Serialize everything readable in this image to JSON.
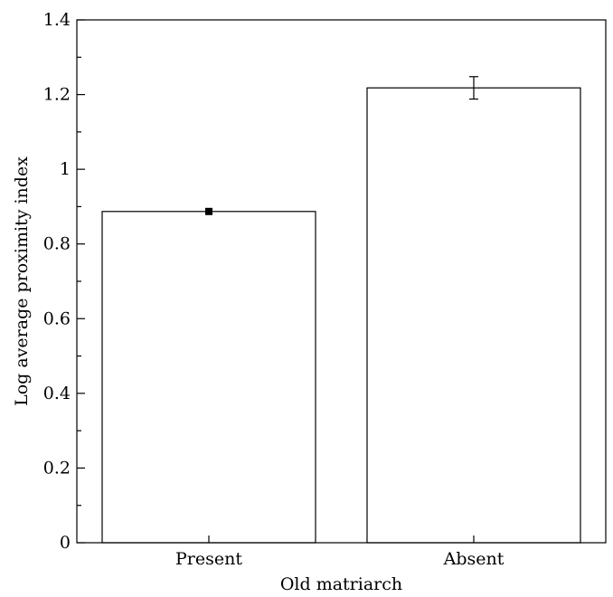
{
  "chart_data": {
    "type": "bar",
    "title": "",
    "xlabel": "Old matriarch",
    "ylabel": "Log average proximity index",
    "categories": [
      "Present",
      "Absent"
    ],
    "values": [
      0.887,
      1.218
    ],
    "errors": [
      0.004,
      0.03
    ],
    "ylim": [
      0,
      1.4
    ],
    "yticks": [
      0,
      0.2,
      0.4,
      0.6,
      0.8,
      1,
      1.2,
      1.4
    ],
    "ytick_labels": [
      "0",
      "0.2",
      "0.4",
      "0.6",
      "0.8",
      "1",
      "1.2",
      "1.4"
    ],
    "minor_ytick_step": 0.1,
    "grid": false,
    "legend": "none",
    "bar_fill": "#ffffff",
    "bar_stroke": "#000000"
  }
}
